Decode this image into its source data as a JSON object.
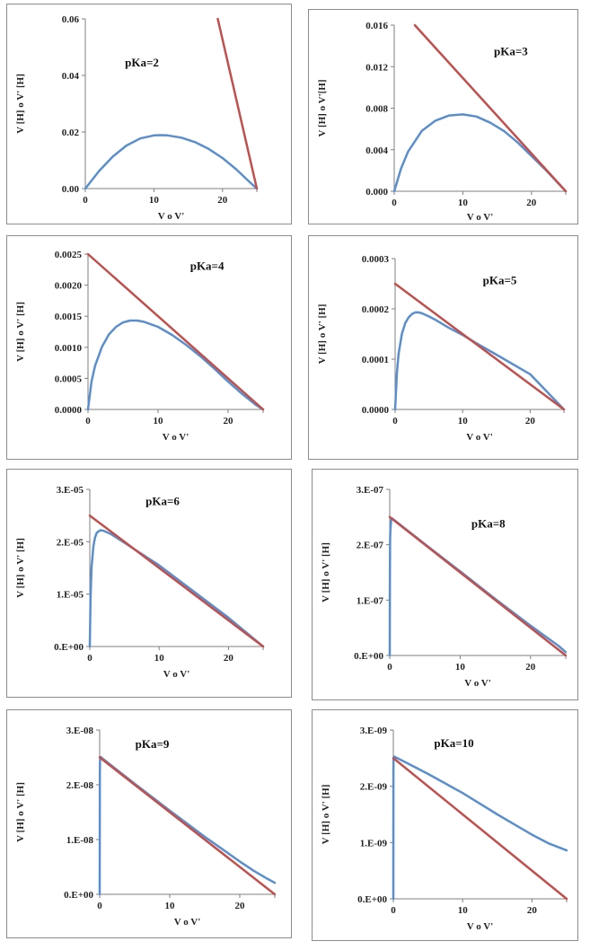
{
  "colors": {
    "titration_curve": "#5b8fcc",
    "tangent_line": "#c0504d",
    "axis": "#7f7f7f",
    "border": "#8c8c8c"
  },
  "chart_data": [
    {
      "type": "line",
      "title": "pKa=2",
      "xlabel": "V  o  V'",
      "ylabel": "V [H]  o  V' [H]",
      "xlim": [
        0,
        25
      ],
      "ylim": [
        0,
        0.06
      ],
      "x_ticks": [
        0,
        10,
        20
      ],
      "x_tick_labels": [
        "0",
        "10",
        "20"
      ],
      "y_ticks": [
        0,
        0.02,
        0.04,
        0.06
      ],
      "y_tick_labels": [
        "0.00",
        "0.02",
        "0.04",
        "0.06"
      ],
      "series": [
        {
          "x": [
            0,
            2,
            4,
            6,
            8,
            10,
            11,
            12,
            14,
            16,
            18,
            20,
            22,
            24,
            25
          ],
          "y": [
            0,
            0.0062,
            0.0113,
            0.0152,
            0.0177,
            0.0188,
            0.0189,
            0.0188,
            0.018,
            0.0164,
            0.014,
            0.0108,
            0.0068,
            0.0022,
            0
          ]
        },
        {
          "x": [
            19.3,
            25
          ],
          "y": [
            0.06,
            0
          ]
        }
      ]
    },
    {
      "type": "line",
      "title": "pKa=3",
      "xlabel": "V  o  V'",
      "ylabel": "V [H]  o  V'[H]",
      "xlim": [
        0,
        25
      ],
      "ylim": [
        0,
        0.016
      ],
      "x_ticks": [
        0,
        10,
        20
      ],
      "x_tick_labels": [
        "0",
        "10",
        "20"
      ],
      "y_ticks": [
        0,
        0.004,
        0.008,
        0.012,
        0.016
      ],
      "y_tick_labels": [
        "0.000",
        "0.004",
        "0.008",
        "0.012",
        "0.016"
      ],
      "series": [
        {
          "x": [
            0,
            1,
            2,
            4,
            6,
            8,
            10,
            12,
            14,
            16,
            18,
            20,
            22,
            24,
            25
          ],
          "y": [
            0,
            0.0022,
            0.0038,
            0.0058,
            0.0068,
            0.0073,
            0.0074,
            0.0072,
            0.0066,
            0.0058,
            0.0047,
            0.0034,
            0.0021,
            0.0007,
            0
          ]
        },
        {
          "x": [
            3,
            25
          ],
          "y": [
            0.016,
            0
          ]
        }
      ]
    },
    {
      "type": "line",
      "title": "pKa=4",
      "xlabel": "V  o  V'",
      "ylabel": "V [H]  o  V' [H]",
      "xlim": [
        0,
        25
      ],
      "ylim": [
        0,
        0.0025
      ],
      "x_ticks": [
        0,
        10,
        20
      ],
      "x_tick_labels": [
        "0",
        "10",
        "20"
      ],
      "y_ticks": [
        0,
        0.0005,
        0.001,
        0.0015,
        0.002,
        0.0025
      ],
      "y_tick_labels": [
        "0.0000",
        "0.0005",
        "0.0010",
        "0.0015",
        "0.0020",
        "0.0025"
      ],
      "series": [
        {
          "x": [
            0,
            0.5,
            1,
            2,
            3,
            4,
            5,
            6,
            7,
            8,
            10,
            12,
            14,
            16,
            18,
            20,
            22,
            24,
            25
          ],
          "y": [
            0,
            0.00045,
            0.0007,
            0.00101,
            0.00121,
            0.00133,
            0.0014,
            0.00143,
            0.00143,
            0.00141,
            0.00133,
            0.0012,
            0.00104,
            0.00086,
            0.00066,
            0.00045,
            0.00025,
            7e-05,
            0
          ]
        },
        {
          "x": [
            0,
            25
          ],
          "y": [
            0.0025,
            0
          ]
        }
      ]
    },
    {
      "type": "line",
      "title": "pKa=5",
      "xlabel": "V  o  V'",
      "ylabel": "V [H]  o  V' [H]",
      "xlim": [
        0,
        25
      ],
      "ylim": [
        0,
        0.0003
      ],
      "x_ticks": [
        0,
        10,
        20
      ],
      "x_tick_labels": [
        "0",
        "10",
        "20"
      ],
      "y_ticks": [
        0,
        0.0001,
        0.0002,
        0.0003
      ],
      "y_tick_labels": [
        "0.0000",
        "0.0001",
        "0.0002",
        "0.0003"
      ],
      "series": [
        {
          "x": [
            0,
            0.25,
            0.5,
            1,
            1.5,
            2,
            2.5,
            3,
            3.5,
            4,
            5,
            6,
            8,
            10,
            12,
            15,
            20,
            25
          ],
          "y": [
            0,
            7e-05,
            0.00011,
            0.00015,
            0.000172,
            0.000183,
            0.00019,
            0.000193,
            0.000193,
            0.000191,
            0.000185,
            0.000178,
            0.000162,
            0.000148,
            0.000132,
            0.000109,
            7e-05,
            0
          ]
        },
        {
          "x": [
            0,
            25
          ],
          "y": [
            0.00025,
            0
          ]
        }
      ]
    },
    {
      "type": "line",
      "title": "pKa=6",
      "xlabel": "V  o  V'",
      "ylabel": "V [H]  o  V' [H]",
      "xlim": [
        0,
        25
      ],
      "ylim": [
        0,
        3e-05
      ],
      "x_ticks": [
        0,
        10,
        20
      ],
      "x_tick_labels": [
        "0",
        "10",
        "20"
      ],
      "y_ticks": [
        0,
        1e-05,
        2e-05,
        3e-05
      ],
      "y_tick_labels": [
        "0.E+00",
        "1.E-05",
        "2.E-05",
        "3.E-05"
      ],
      "series": [
        {
          "x": [
            0,
            0.1,
            0.25,
            0.5,
            0.75,
            1,
            1.5,
            2,
            3,
            5,
            10,
            15,
            20,
            25
          ],
          "y": [
            0,
            9e-06,
            1.5e-05,
            1.9e-05,
            2.08e-05,
            2.17e-05,
            2.22e-05,
            2.21e-05,
            2.15e-05,
            1.98e-05,
            1.55e-05,
            1.05e-05,
            5.5e-06,
            0
          ]
        },
        {
          "x": [
            0,
            25
          ],
          "y": [
            2.5e-05,
            0
          ]
        }
      ]
    },
    {
      "type": "line",
      "title": "pKa=8",
      "xlabel": "V  o  V'",
      "ylabel": "V [H]  o  V' [H]",
      "xlim": [
        0,
        25
      ],
      "ylim": [
        0,
        3e-07
      ],
      "x_ticks": [
        0,
        10,
        20
      ],
      "x_tick_labels": [
        "0",
        "10",
        "20"
      ],
      "y_ticks": [
        0,
        1e-07,
        2e-07,
        3e-07
      ],
      "y_tick_labels": [
        "0.E+00",
        "1.E-07",
        "2.E-07",
        "3.E-07"
      ],
      "series": [
        {
          "x": [
            0,
            0.02,
            0.05,
            0.1,
            0.2,
            0.3,
            5,
            10,
            15,
            20,
            24,
            25
          ],
          "y": [
            0,
            1.5e-07,
            2.1e-07,
            2.3e-07,
            2.44e-07,
            2.48e-07,
            2.01e-07,
            1.52e-07,
            1.02e-07,
            5.4e-08,
            1.7e-08,
            6e-09
          ]
        },
        {
          "x": [
            0,
            25
          ],
          "y": [
            2.5e-07,
            0
          ]
        }
      ]
    },
    {
      "type": "line",
      "title": "pKa=9",
      "xlabel": "V  o V'",
      "ylabel": "V [H]  o  V' [H]",
      "xlim": [
        0,
        25
      ],
      "ylim": [
        0,
        3e-08
      ],
      "x_ticks": [
        0,
        10,
        20
      ],
      "x_tick_labels": [
        "0",
        "10",
        "20"
      ],
      "y_ticks": [
        0,
        1e-08,
        2e-08,
        3e-08
      ],
      "y_tick_labels": [
        "0.E+00",
        "1.E-08",
        "2.E-08",
        "3.E-08"
      ],
      "series": [
        {
          "x": [
            0,
            0.02,
            0.05,
            0.1,
            5,
            10,
            15,
            20,
            22,
            24,
            25
          ],
          "y": [
            0,
            2.2e-08,
            2.45e-08,
            2.51e-08,
            2.02e-08,
            1.53e-08,
            1.05e-08,
            6e-09,
            4.3e-09,
            2.8e-09,
            2.1e-09
          ]
        },
        {
          "x": [
            0,
            25
          ],
          "y": [
            2.5e-08,
            0
          ]
        }
      ]
    },
    {
      "type": "line",
      "title": "pKa=10",
      "xlabel": "V  o  V'",
      "ylabel": "V [H]  o  V' [H]",
      "xlim": [
        0,
        25
      ],
      "ylim": [
        0,
        3e-09
      ],
      "x_ticks": [
        0,
        10,
        20
      ],
      "x_tick_labels": [
        "0",
        "10",
        "20"
      ],
      "y_ticks": [
        0,
        1e-09,
        2e-09,
        3e-09
      ],
      "y_tick_labels": [
        "0.E+00",
        "1.E-09",
        "2.E-09",
        "3.E-09"
      ],
      "series": [
        {
          "x": [
            0,
            0.01,
            0.03,
            0.1,
            2.5,
            5,
            7.5,
            10,
            12.5,
            15,
            17.5,
            20,
            22.5,
            25
          ],
          "y": [
            0,
            2.2e-09,
            2.5e-09,
            2.53e-09,
            2.38e-09,
            2.22e-09,
            2.05e-09,
            1.88e-09,
            1.69e-09,
            1.5e-09,
            1.32e-09,
            1.14e-09,
            9.8e-10,
            8.6e-10
          ]
        },
        {
          "x": [
            0,
            25
          ],
          "y": [
            2.5e-09,
            0
          ]
        }
      ]
    }
  ]
}
